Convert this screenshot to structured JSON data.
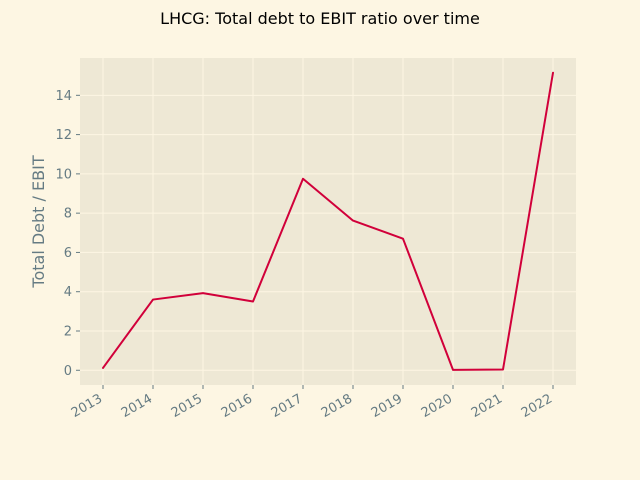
{
  "chart_data": {
    "type": "line",
    "title": "LHCG: Total debt to EBIT ratio over time",
    "xlabel": "",
    "ylabel": "Total Debt / EBIT",
    "x": [
      "2013",
      "2014",
      "2015",
      "2016",
      "2017",
      "2018",
      "2019",
      "2020",
      "2021",
      "2022"
    ],
    "series": [
      {
        "values": [
          0.12,
          3.6,
          3.93,
          3.5,
          9.75,
          7.62,
          6.7,
          0.02,
          0.04,
          15.15
        ],
        "color": "#d1003a"
      }
    ],
    "ylim": [
      -0.75,
      15.9
    ],
    "yticks": [
      0,
      2,
      4,
      6,
      8,
      10,
      12,
      14
    ],
    "grid": true,
    "legend": "none",
    "colors": {
      "figure_background": "#fdf6e3",
      "plot_background": "#eee8d5",
      "grid": "#fdf6e3",
      "tick_text": "#657b83",
      "line": "#d1003a"
    }
  }
}
